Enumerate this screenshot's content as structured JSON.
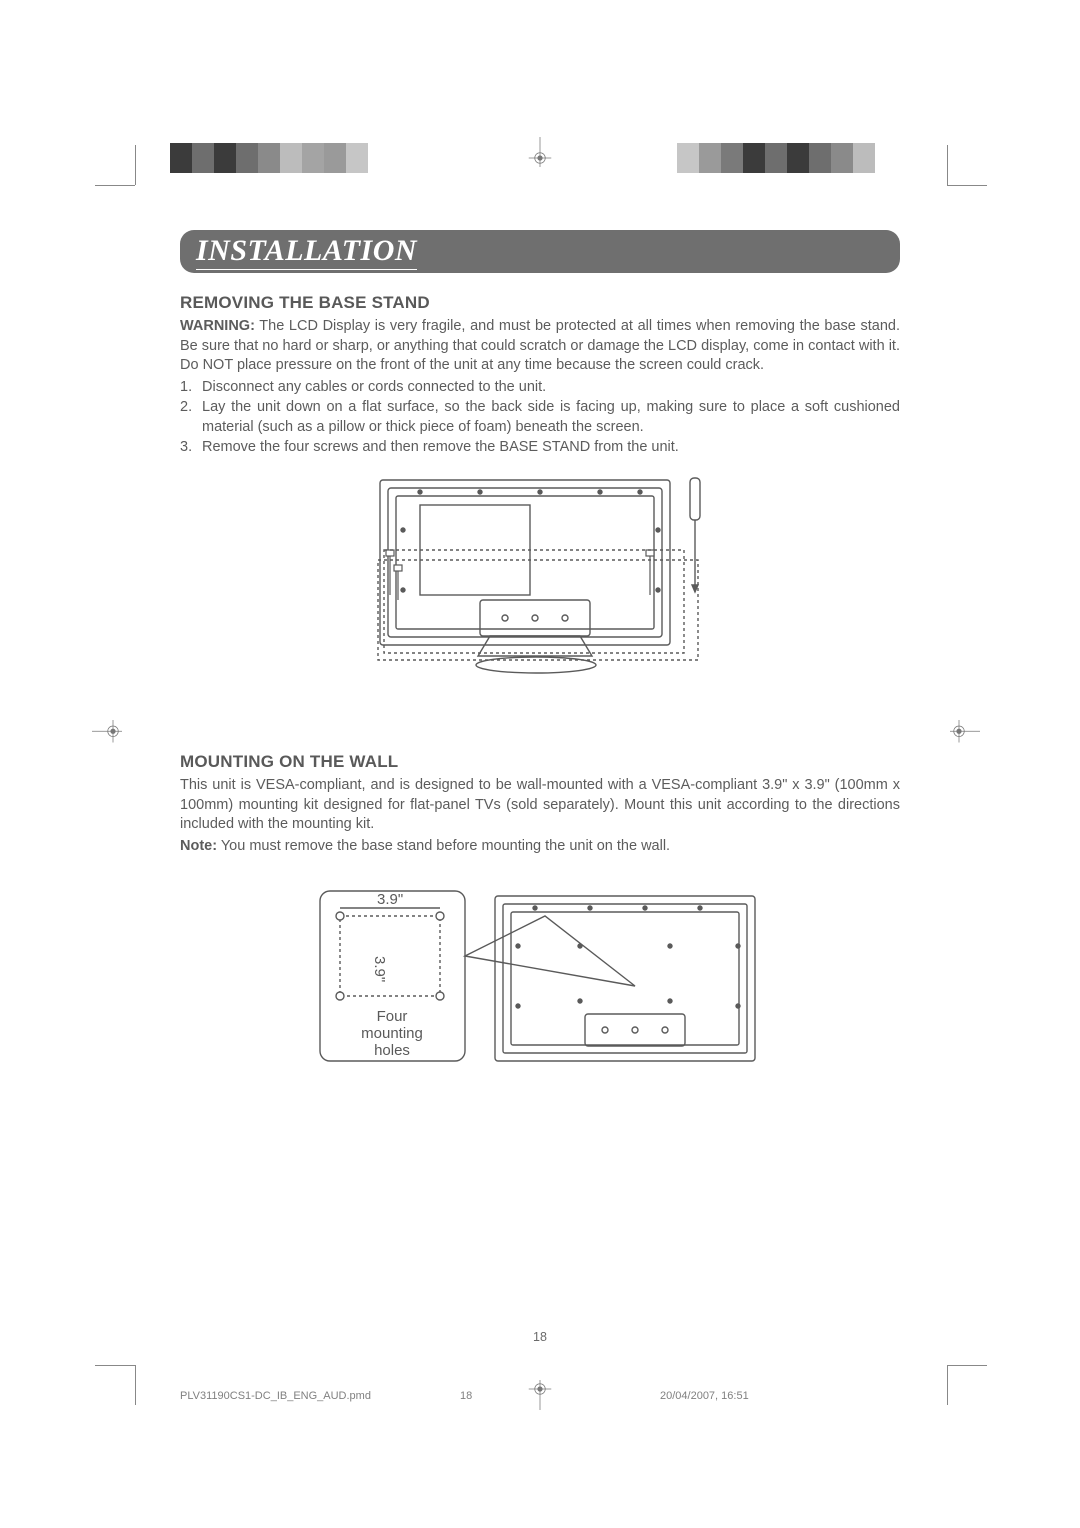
{
  "colors": {
    "text": "#5a5a5a",
    "header_bg": "#6f6f6f",
    "header_text": "#ffffff",
    "diagram_stroke": "#5a5a5a",
    "background": "#ffffff"
  },
  "header": {
    "title": "INSTALLATION"
  },
  "section1": {
    "heading": "REMOVING THE BASE STAND",
    "warning_label": "WARNING:",
    "warning_text": " The LCD Display is very fragile, and must be protected at all times when removing the base stand. Be sure that no hard or sharp, or anything that could scratch or damage the LCD display, come in contact with it. Do NOT place pressure on the front of the unit at any time because the screen could crack.",
    "steps": [
      "Disconnect any cables or cords connected to the unit.",
      "Lay the unit down on a flat surface, so the back side is facing up, making sure to place a soft cushioned material (such as a pillow or thick piece of foam) beneath the screen.",
      "Remove the four screws and then remove the BASE STAND from the unit."
    ]
  },
  "section2": {
    "heading": "MOUNTING ON THE WALL",
    "para": "This unit is VESA-compliant, and is designed to be wall-mounted with a VESA-compliant 3.9\" x 3.9\" (100mm x 100mm) mounting kit designed for flat-panel TVs (sold separately). Mount this unit according to the directions included with the mounting kit.",
    "note_label": "Note:",
    "note_text": " You must remove the base stand before mounting the unit on the wall."
  },
  "diagram2": {
    "dim_h": "3.9\"",
    "dim_v": "3.9\"",
    "callout": "Four\nmounting\nholes"
  },
  "page_number": "18",
  "footer": {
    "filename": "PLV31190CS1-DC_IB_ENG_AUD.pmd",
    "page": "18",
    "timestamp": "20/04/2007, 16:51"
  },
  "colorbar_left": [
    "#3b3b3b",
    "#6e6e6e",
    "#3b3b3b",
    "#6e6e6e",
    "#8a8a8a",
    "#bcbcbc",
    "#a4a4a4",
    "#9a9a9a",
    "#c6c6c6",
    "#ffffff"
  ],
  "colorbar_right": [
    "#ffffff",
    "#c6c6c6",
    "#9a9a9a",
    "#7a7a7a",
    "#3b3b3b",
    "#6e6e6e",
    "#3b3b3b",
    "#6e6e6e",
    "#8a8a8a",
    "#bcbcbc"
  ]
}
